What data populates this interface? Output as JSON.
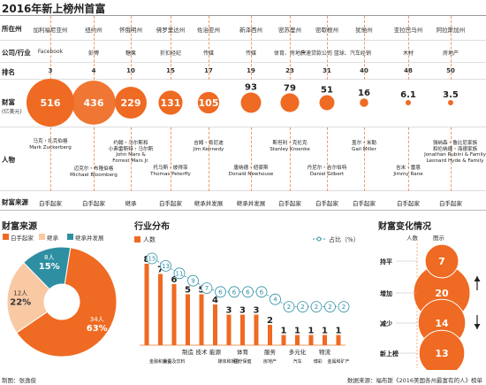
{
  "title": "2016年新上榜州首富",
  "row_labels": {
    "state": "所在州",
    "company": "公司/行业",
    "rank": "排名",
    "wealth_a": "财富",
    "wealth_b": "(亿美元)",
    "people": "人物",
    "source": "财富来源"
  },
  "states": [
    "加利福尼亚州",
    "纽约州",
    "怀俄明州",
    "佛罗里达州",
    "佐治亚州",
    "新泽西州",
    "密苏里州",
    "密歇根州",
    "犹他州",
    "亚拉巴马州",
    "阿拉斯加州"
  ],
  "companies": [
    "Facebook",
    "彭博",
    "糖果",
    "折扣经纪",
    "传媒",
    "传媒",
    "体育、房地产",
    "快速贷款公司 篮球、汽车经销",
    "",
    "木材",
    "房地产"
  ],
  "people": [
    {
      "cn": "马克・扎克伯格",
      "en": "Mark Zuckerberg"
    },
    {
      "cn": "迈克尔・布隆伯格",
      "en": "Michael Bloomberg"
    },
    {
      "cn": "约翰・马尔斯和",
      "cn2": "小弗雷斯特・马尔斯",
      "en": "John Mars &",
      "en2": "Forrest Mars Jr."
    },
    {
      "cn": "托马斯・彼得菲",
      "en": "Thomas Peterffy"
    },
    {
      "cn": "吉姆・肯尼迪",
      "en": "Jim Kennedy"
    },
    {
      "cn": "唐纳德・纽豪斯",
      "en": "Donald Newhouse"
    },
    {
      "cn": "斯坦利・克伦克",
      "en": "Stanley Kroenke"
    },
    {
      "cn": "丹尼尔・吉尔伯特",
      "en": "Daniel Gilbert"
    },
    {
      "cn": "盖尔・米勒",
      "en": "Gail Miller"
    },
    {
      "cn": "吉米・雷恩",
      "en": "Jimmy Rane"
    },
    {
      "cn": "强纳森・鲁比尼家族",
      "cn2": "和伦纳德・海德家族",
      "en": "Jonathan Rubini & Family",
      "en2": "Leonard Hyde & Family"
    }
  ],
  "sources": [
    "白手起家",
    "白手起家",
    "继承",
    "白手起家",
    "继承并发展",
    "继承并发展",
    "白手起家",
    "白手起家",
    "白手起家",
    "白手起家",
    "白手起家"
  ],
  "top_chart": {
    "type": "bubble",
    "categories": [
      "加利福尼亚州",
      "纽约州",
      "怀俄明州",
      "佛罗里达州",
      "佐治亚州",
      "新泽西州",
      "密苏里州",
      "密歇根州",
      "犹他州",
      "亚拉巴马州",
      "阿拉斯加州"
    ],
    "ranks": [
      3,
      4,
      10,
      15,
      17,
      19,
      23,
      31,
      40,
      48,
      50
    ],
    "values": [
      516,
      436,
      229,
      131,
      105,
      93,
      79,
      51,
      16,
      6.1,
      3.5
    ],
    "color": "#ef6a22"
  },
  "pie": {
    "title": "财富来源",
    "legend": [
      "白手起家",
      "继承",
      "继承并发展"
    ],
    "labels": [
      "34人",
      "12人",
      "8人"
    ],
    "percents": [
      "63%",
      "22%",
      "15%"
    ]
  },
  "industry": {
    "title": "行业分布",
    "legend_count": "人数",
    "legend_share": "占比（%）"
  },
  "wealth_change": {
    "title": "财富变化情况",
    "col1": "人数",
    "col2": "图示",
    "rows": [
      "持平",
      "增加",
      "减少",
      "新上榜"
    ],
    "counts": [
      7,
      20,
      14,
      13
    ],
    "colors": [
      "#ef6a22",
      "#ef6a22",
      "#ef6a22",
      "#ef6a22"
    ]
  },
  "chart_data": [
    {
      "type": "bubble",
      "title": "2016年新上榜州首富",
      "categories": [
        "加利福尼亚州",
        "纽约州",
        "怀俄明州",
        "佛罗里达州",
        "佐治亚州",
        "新泽西州",
        "密苏里州",
        "密歇根州",
        "犹他州",
        "亚拉巴马州",
        "阿拉斯加州"
      ],
      "series": [
        {
          "name": "排名",
          "values": [
            3,
            4,
            10,
            15,
            17,
            19,
            23,
            31,
            40,
            48,
            50
          ]
        },
        {
          "name": "财富",
          "values": [
            516,
            436,
            229,
            131,
            105,
            93,
            79,
            51,
            16,
            6.1,
            3.5
          ]
        }
      ]
    },
    {
      "type": "pie",
      "title": "财富来源",
      "categories": [
        "白手起家",
        "继承",
        "继承并发展"
      ],
      "values": [
        34,
        12,
        8
      ],
      "percents": [
        63,
        22,
        15
      ],
      "colors": [
        "#ef6a22",
        "#f9c9a4",
        "#2e8fa3"
      ]
    },
    {
      "type": "bar",
      "title": "行业分布",
      "categories": [
        "食品和饮料",
        "金融和投资",
        "制造",
        "技术",
        "能源",
        "媒体和娱乐",
        "医疗保健",
        "体育",
        "房地产",
        "服务",
        "汽车",
        "多元化",
        "博彩",
        "物流",
        "金属和矿产"
      ],
      "category_labels": [
        {
          "text": "金融和投资",
          "at": 1,
          "row": 1
        },
        {
          "text": "食品及饮料",
          "at": 2,
          "row": 1
        },
        {
          "text": "制造",
          "at": 3,
          "row": 0
        },
        {
          "text": "技术",
          "at": 4,
          "row": 0
        },
        {
          "text": "能源",
          "at": 5,
          "row": 0
        },
        {
          "text": "媒体和娱乐",
          "at": 6,
          "row": 1
        },
        {
          "text": "体育",
          "at": 7,
          "row": 0
        },
        {
          "text": "医疗保健",
          "at": 7,
          "row": 1
        },
        {
          "text": "服务",
          "at": 9,
          "row": 0
        },
        {
          "text": "房地产",
          "at": 9,
          "row": 1
        },
        {
          "text": "多元化",
          "at": 11,
          "row": 0
        },
        {
          "text": "汽车",
          "at": 11,
          "row": 1
        },
        {
          "text": "物流",
          "at": 13,
          "row": 0
        },
        {
          "text": "博彩",
          "at": 12.5,
          "row": 1
        },
        {
          "text": "金属和矿产",
          "at": 14,
          "row": 1
        }
      ],
      "series": [
        {
          "name": "人数",
          "values": [
            8,
            7,
            6,
            5,
            5,
            4,
            3,
            3,
            3,
            2,
            1,
            1,
            1,
            1,
            1
          ],
          "color": "#ef6a22"
        },
        {
          "name": "占比（%）",
          "values": [
            15,
            13,
            11,
            9,
            7,
            6,
            6,
            6,
            6,
            4,
            2,
            2,
            2,
            2,
            2
          ],
          "color": "#2e8fa3"
        }
      ],
      "ylim": [
        0,
        16
      ]
    },
    {
      "type": "bubble",
      "title": "财富变化情况",
      "categories": [
        "持平",
        "增加",
        "减少",
        "新上榜"
      ],
      "values": [
        7,
        20,
        14,
        13
      ]
    }
  ],
  "footer": {
    "left": "制图：张逸俊",
    "right": "数据来源：福布斯《2016美国各州最富有的人》榜单"
  }
}
